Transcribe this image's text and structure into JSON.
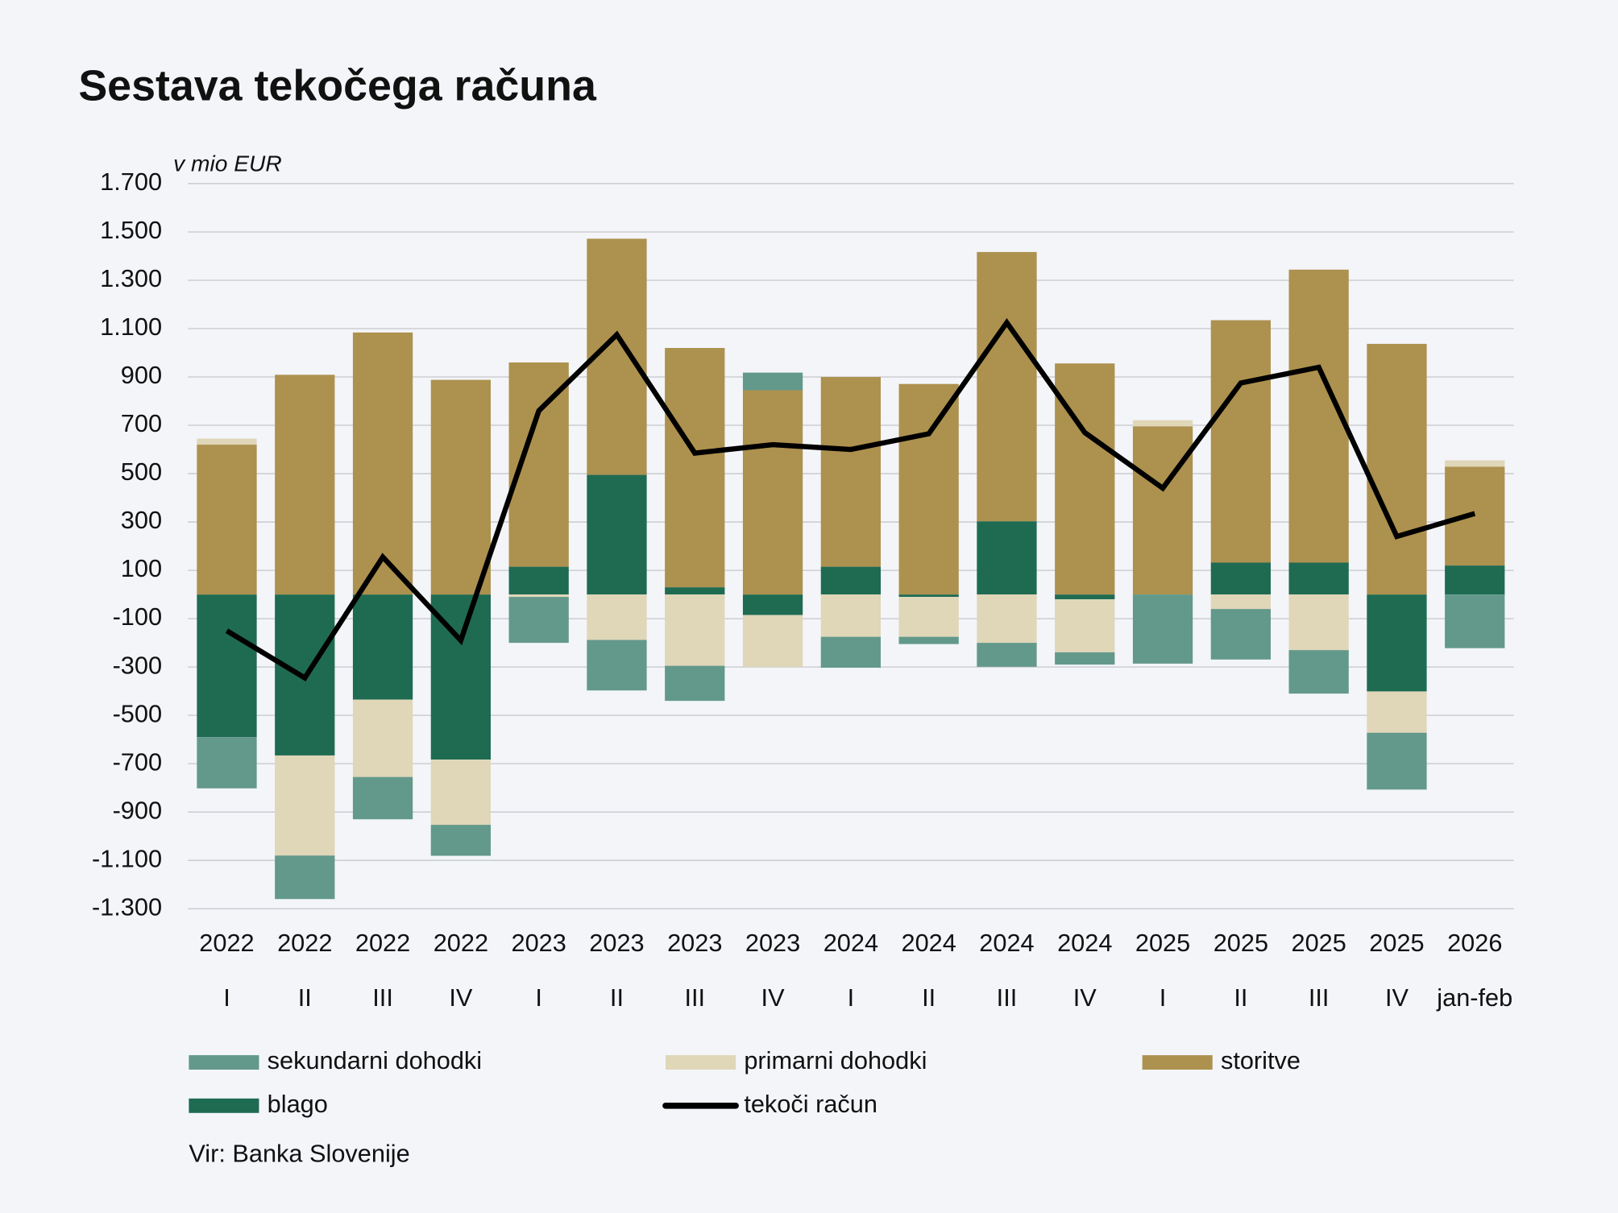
{
  "chart_data": {
    "type": "stacked-bar-line",
    "title": "Sestava tekočega računa",
    "y_label": "v mio EUR",
    "source": "Vir: Banka Slovenije",
    "categories": [
      [
        "2022",
        "I"
      ],
      [
        "2022",
        "II"
      ],
      [
        "2022",
        "III"
      ],
      [
        "2022",
        "IV"
      ],
      [
        "2023",
        "I"
      ],
      [
        "2023",
        "II"
      ],
      [
        "2023",
        "III"
      ],
      [
        "2023",
        "IV"
      ],
      [
        "2024",
        "I"
      ],
      [
        "2024",
        "II"
      ],
      [
        "2024",
        "III"
      ],
      [
        "2024",
        "IV"
      ],
      [
        "2025",
        "I"
      ],
      [
        "2025",
        "II"
      ],
      [
        "2025",
        "III"
      ],
      [
        "2025",
        "IV"
      ],
      [
        "2026",
        "jan-feb"
      ]
    ],
    "series": [
      {
        "name": "sekundarni dohodki",
        "type": "bar",
        "color": "#63998a",
        "values": [
          -212,
          -180,
          -175,
          -128,
          -190,
          -209,
          -145,
          73,
          -128,
          -30,
          -99,
          -51,
          -286,
          -209,
          -180,
          -235,
          -222
        ]
      },
      {
        "name": "primarni dohodki",
        "type": "bar",
        "color": "#e0d6b8",
        "values": [
          25,
          -414,
          -320,
          -270,
          -10,
          -188,
          -295,
          -215,
          -175,
          -165,
          -200,
          -219,
          25,
          -60,
          -230,
          -171,
          26
        ]
      },
      {
        "name": "storitve",
        "type": "bar",
        "color": "#ad914e",
        "values": [
          620,
          909,
          1084,
          888,
          845,
          977,
          990,
          845,
          785,
          871,
          1114,
          956,
          696,
          1003,
          1212,
          1037,
          409
        ]
      },
      {
        "name": "blago",
        "type": "bar",
        "color": "#1f6b52",
        "values": [
          -590,
          -666,
          -435,
          -683,
          115,
          495,
          30,
          -85,
          115,
          -10,
          303,
          -20,
          0,
          132,
          132,
          -401,
          120
        ]
      },
      {
        "name": "tekoči račun",
        "type": "line",
        "color": "#000000",
        "values": [
          -150,
          -345,
          155,
          -190,
          760,
          1075,
          585,
          620,
          600,
          665,
          1125,
          670,
          440,
          875,
          940,
          240,
          335
        ]
      }
    ],
    "ylim": [
      -1300,
      1700
    ],
    "yticks": [
      {
        "value": -1300,
        "label": "-1.300"
      },
      {
        "value": -1100,
        "label": "-1.100"
      },
      -900,
      -700,
      -500,
      -300,
      -100,
      100,
      300,
      500,
      700,
      900,
      {
        "value": 1100,
        "label": "1.100"
      },
      {
        "value": 1300,
        "label": "1.300"
      },
      {
        "value": 1500,
        "label": "1.500"
      },
      {
        "value": 1700,
        "label": "1.700"
      }
    ],
    "grid": true
  }
}
